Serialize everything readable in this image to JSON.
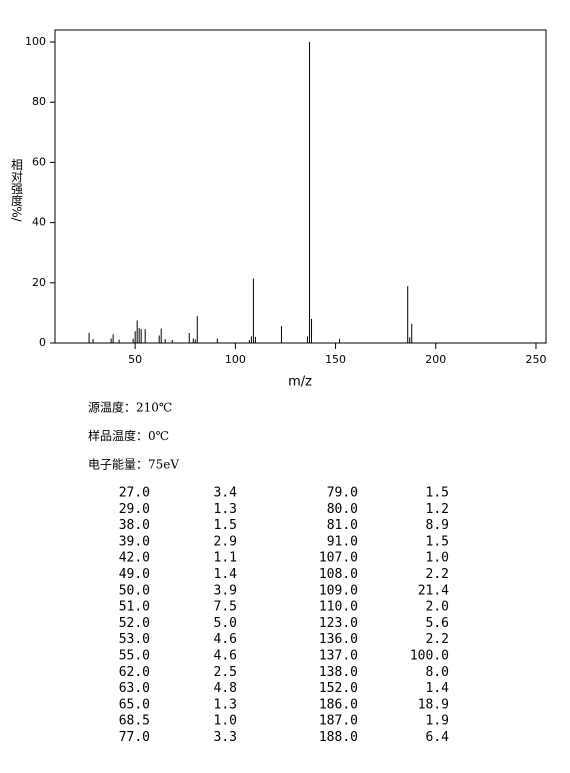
{
  "chart_data": {
    "type": "bar",
    "xlabel": "m/z",
    "ylabel": "相对强度%/",
    "x": [
      27,
      29,
      38,
      39,
      42,
      49,
      50,
      51,
      52,
      53,
      55,
      62,
      63,
      65,
      68.5,
      77,
      79,
      80,
      81,
      91,
      107,
      108,
      109,
      110,
      123,
      136,
      137,
      138,
      152,
      186,
      187,
      188
    ],
    "values": [
      3.4,
      1.3,
      1.5,
      2.9,
      1.1,
      1.4,
      3.9,
      7.5,
      5.0,
      4.6,
      4.6,
      2.5,
      4.8,
      1.3,
      1.0,
      3.3,
      1.5,
      1.2,
      8.9,
      1.5,
      1.0,
      2.2,
      21.4,
      2.0,
      5.6,
      2.2,
      100.0,
      8.0,
      1.4,
      18.9,
      1.9,
      6.4
    ],
    "color": "#000000",
    "xlim": [
      10,
      255
    ],
    "xticks": [
      50,
      100,
      150,
      200,
      250
    ],
    "ylim": [
      0,
      104
    ],
    "yticks": [
      0,
      20,
      40,
      60,
      80,
      100
    ]
  },
  "conditions": [
    "源温度：210℃",
    "样品温度：0℃",
    "电子能量：75eV"
  ],
  "table": {
    "rows": [
      [
        "27.0",
        "3.4",
        "79.0",
        "1.5"
      ],
      [
        "29.0",
        "1.3",
        "80.0",
        "1.2"
      ],
      [
        "38.0",
        "1.5",
        "81.0",
        "8.9"
      ],
      [
        "39.0",
        "2.9",
        "91.0",
        "1.5"
      ],
      [
        "42.0",
        "1.1",
        "107.0",
        "1.0"
      ],
      [
        "49.0",
        "1.4",
        "108.0",
        "2.2"
      ],
      [
        "50.0",
        "3.9",
        "109.0",
        "21.4"
      ],
      [
        "51.0",
        "7.5",
        "110.0",
        "2.0"
      ],
      [
        "52.0",
        "5.0",
        "123.0",
        "5.6"
      ],
      [
        "53.0",
        "4.6",
        "136.0",
        "2.2"
      ],
      [
        "55.0",
        "4.6",
        "137.0",
        "100.0"
      ],
      [
        "62.0",
        "2.5",
        "138.0",
        "8.0"
      ],
      [
        "63.0",
        "4.8",
        "152.0",
        "1.4"
      ],
      [
        "65.0",
        "1.3",
        "186.0",
        "18.9"
      ],
      [
        "68.5",
        "1.0",
        "187.0",
        "1.9"
      ],
      [
        "77.0",
        "3.3",
        "188.0",
        "6.4"
      ]
    ]
  }
}
